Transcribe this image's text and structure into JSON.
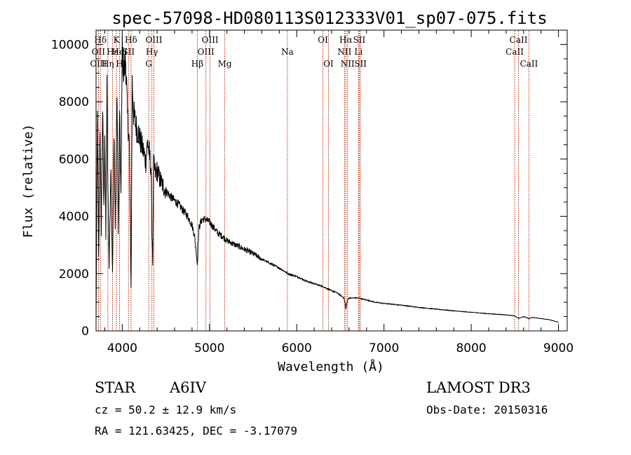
{
  "chart_data": {
    "type": "line",
    "title": "spec-57098-HD080113S012333V01_sp07-075.fits",
    "xlabel": "Wavelength (Å)",
    "ylabel": "Flux (relative)",
    "xlim": [
      3700,
      9100
    ],
    "ylim": [
      0,
      10500
    ],
    "xticks": [
      4000,
      5000,
      6000,
      7000,
      8000,
      9000
    ],
    "yticks": [
      0,
      2000,
      4000,
      6000,
      8000,
      10000
    ],
    "grid": false,
    "series": [
      {
        "name": "spectrum",
        "x": [
          3700,
          3715,
          3730,
          3745,
          3760,
          3775,
          3790,
          3800,
          3812,
          3825,
          3835,
          3850,
          3870,
          3889,
          3905,
          3920,
          3940,
          3955,
          3970,
          3985,
          4000,
          4020,
          4040,
          4060,
          4080,
          4101,
          4115,
          4130,
          4150,
          4170,
          4190,
          4210,
          4230,
          4250,
          4270,
          4290,
          4310,
          4330,
          4340,
          4350,
          4360,
          4380,
          4400,
          4430,
          4460,
          4500,
          4550,
          4600,
          4650,
          4700,
          4750,
          4800,
          4830,
          4850,
          4861,
          4870,
          4880,
          4900,
          4920,
          4950,
          5000,
          5050,
          5100,
          5150,
          5200,
          5300,
          5400,
          5500,
          5600,
          5700,
          5800,
          5900,
          6000,
          6100,
          6200,
          6300,
          6400,
          6450,
          6500,
          6540,
          6555,
          6563,
          6570,
          6585,
          6600,
          6650,
          6700,
          6800,
          6900,
          7000,
          7200,
          7400,
          7600,
          7800,
          8000,
          8200,
          8400,
          8500,
          8542,
          8600,
          8662,
          8700,
          8800,
          8900,
          9000
        ],
        "y": [
          300,
          7500,
          2500,
          7200,
          3500,
          7800,
          4200,
          7000,
          3200,
          8500,
          5000,
          2300,
          5700,
          2000,
          7000,
          3500,
          8400,
          3200,
          7800,
          4500,
          9800,
          9000,
          9500,
          7500,
          6600,
          1500,
          8700,
          7600,
          7300,
          7000,
          6900,
          6600,
          6400,
          6200,
          5900,
          6600,
          6200,
          5700,
          3500,
          2400,
          5800,
          5500,
          5600,
          5300,
          5100,
          4900,
          4700,
          4550,
          4400,
          4200,
          4000,
          3700,
          3300,
          2700,
          2300,
          3000,
          3600,
          3800,
          3900,
          3900,
          3800,
          3600,
          3400,
          3300,
          3150,
          3000,
          2850,
          2700,
          2500,
          2350,
          2200,
          2000,
          1900,
          1750,
          1650,
          1550,
          1400,
          1350,
          1250,
          1150,
          950,
          750,
          900,
          1100,
          1150,
          1150,
          1150,
          1080,
          1000,
          960,
          900,
          820,
          760,
          700,
          650,
          600,
          560,
          520,
          440,
          500,
          430,
          470,
          430,
          390,
          300
        ]
      }
    ],
    "spectral_lines": [
      {
        "label": "Hδ",
        "wavelength": 3750,
        "row": 1
      },
      {
        "label": "K",
        "wavelength": 3934,
        "row": 1
      },
      {
        "label": "Hδ",
        "wavelength": 4101,
        "row": 1
      },
      {
        "label": "OIII",
        "wavelength": 4363,
        "row": 1
      },
      {
        "label": "OIII",
        "wavelength": 5007,
        "row": 1
      },
      {
        "label": "OI",
        "wavelength": 6300,
        "row": 1
      },
      {
        "label": "Hα",
        "wavelength": 6563,
        "row": 1
      },
      {
        "label": "SII",
        "wavelength": 6717,
        "row": 1
      },
      {
        "label": "CaII",
        "wavelength": 8542,
        "row": 1
      },
      {
        "label": "OII",
        "wavelength": 3727,
        "row": 2
      },
      {
        "label": "Hε",
        "wavelength": 3889,
        "row": 2
      },
      {
        "label": "HeI",
        "wavelength": 3970,
        "row": 2
      },
      {
        "label": "SII",
        "wavelength": 4072,
        "row": 2
      },
      {
        "label": "Hγ",
        "wavelength": 4340,
        "row": 2
      },
      {
        "label": "OIII",
        "wavelength": 4959,
        "row": 2
      },
      {
        "label": "Na",
        "wavelength": 5893,
        "row": 2
      },
      {
        "label": "NII",
        "wavelength": 6548,
        "row": 2
      },
      {
        "label": "Li",
        "wavelength": 6708,
        "row": 2
      },
      {
        "label": "CaII",
        "wavelength": 8498,
        "row": 2
      },
      {
        "label": "OIII",
        "wavelength": 3727,
        "row": 3
      },
      {
        "label": "Hη",
        "wavelength": 3835,
        "row": 3
      },
      {
        "label": "H",
        "wavelength": 3969,
        "row": 3
      },
      {
        "label": "G",
        "wavelength": 4304,
        "row": 3
      },
      {
        "label": "Hβ",
        "wavelength": 4861,
        "row": 3
      },
      {
        "label": "Mg",
        "wavelength": 5175,
        "row": 3
      },
      {
        "label": "OI",
        "wavelength": 6364,
        "row": 3
      },
      {
        "label": "NII",
        "wavelength": 6583,
        "row": 3
      },
      {
        "label": "SII",
        "wavelength": 6731,
        "row": 3
      },
      {
        "label": "CaII",
        "wavelength": 8662,
        "row": 3
      }
    ],
    "line_color": "#cc2200",
    "spectrum_color": "#000000"
  },
  "info": {
    "object_class": "STAR",
    "subclass": "A6IV",
    "redshift": "cz = 50.2 ± 12.9 km/s",
    "coords": "RA = 121.63425, DEC =  -3.17079",
    "survey": "LAMOST DR3",
    "obs_date": "Obs-Date: 20150316"
  }
}
